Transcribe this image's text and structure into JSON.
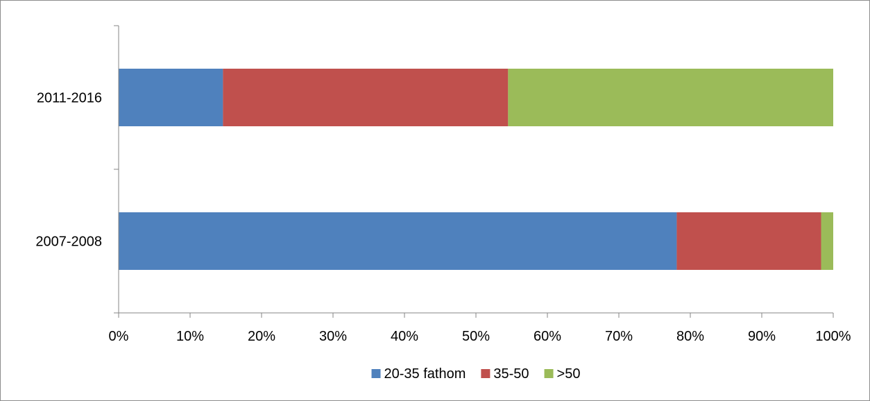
{
  "chart_data": {
    "type": "bar",
    "orientation": "horizontal",
    "stacked": "percent",
    "categories": [
      "2011-2016",
      "2007-2008"
    ],
    "series": [
      {
        "name": "20-35 fathom",
        "color": "#4f81bd",
        "values": [
          14.6,
          78.1
        ]
      },
      {
        "name": "35-50",
        "color": "#c0504d",
        "values": [
          39.9,
          20.2
        ]
      },
      {
        "name": ">50",
        "color": "#9bbb59",
        "values": [
          45.5,
          1.7
        ]
      }
    ],
    "xlim": [
      0,
      100
    ],
    "x_ticks": [
      0,
      10,
      20,
      30,
      40,
      50,
      60,
      70,
      80,
      90,
      100
    ],
    "x_tick_labels": [
      "0%",
      "10%",
      "20%",
      "30%",
      "40%",
      "50%",
      "60%",
      "70%",
      "80%",
      "90%",
      "100%"
    ],
    "grid": false,
    "legend": "bottom",
    "axis_color": "#868686"
  }
}
